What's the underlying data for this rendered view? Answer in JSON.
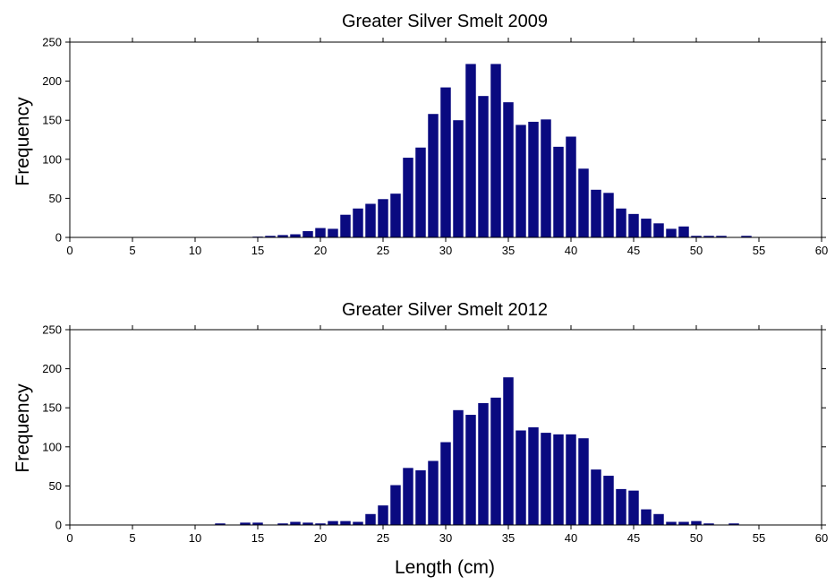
{
  "charts": [
    {
      "type": "bar",
      "title": "Greater Silver Smelt 2009",
      "xlabel": "",
      "ylabel": "Frequency",
      "xlim": [
        0,
        60
      ],
      "ylim": [
        0,
        250
      ],
      "xticks": [
        0,
        5,
        10,
        15,
        20,
        25,
        30,
        35,
        40,
        45,
        50,
        55,
        60
      ],
      "yticks": [
        0,
        50,
        100,
        150,
        200,
        250
      ],
      "grid": false,
      "bar_color": "#0a0a80",
      "x": [
        15,
        16,
        17,
        18,
        19,
        20,
        21,
        22,
        23,
        24,
        25,
        26,
        27,
        28,
        29,
        30,
        31,
        32,
        33,
        34,
        35,
        36,
        37,
        38,
        39,
        40,
        41,
        42,
        43,
        44,
        45,
        46,
        47,
        48,
        49,
        50,
        51,
        52,
        53,
        54
      ],
      "values": [
        1,
        2,
        3,
        4,
        8,
        12,
        11,
        29,
        37,
        43,
        49,
        56,
        102,
        115,
        158,
        192,
        150,
        222,
        181,
        222,
        173,
        144,
        148,
        151,
        116,
        129,
        88,
        61,
        57,
        37,
        30,
        24,
        18,
        11,
        14,
        2,
        2,
        2,
        0,
        2
      ]
    },
    {
      "type": "bar",
      "title": "Greater Silver Smelt 2012",
      "xlabel": "Length (cm)",
      "ylabel": "Frequency",
      "xlim": [
        0,
        60
      ],
      "ylim": [
        0,
        250
      ],
      "xticks": [
        0,
        5,
        10,
        15,
        20,
        25,
        30,
        35,
        40,
        45,
        50,
        55,
        60
      ],
      "yticks": [
        0,
        50,
        100,
        150,
        200,
        250
      ],
      "grid": false,
      "bar_color": "#0a0a80",
      "x": [
        12,
        13,
        14,
        15,
        16,
        17,
        18,
        19,
        20,
        21,
        22,
        23,
        24,
        25,
        26,
        27,
        28,
        29,
        30,
        31,
        32,
        33,
        34,
        35,
        36,
        37,
        38,
        39,
        40,
        41,
        42,
        43,
        44,
        45,
        46,
        47,
        48,
        49,
        50,
        51,
        52,
        53
      ],
      "values": [
        2,
        0,
        3,
        3,
        0,
        2,
        4,
        3,
        2,
        5,
        5,
        4,
        14,
        25,
        51,
        73,
        70,
        82,
        106,
        147,
        141,
        156,
        163,
        189,
        121,
        125,
        118,
        116,
        116,
        111,
        71,
        63,
        46,
        44,
        20,
        14,
        4,
        4,
        5,
        2,
        0,
        2
      ]
    }
  ]
}
